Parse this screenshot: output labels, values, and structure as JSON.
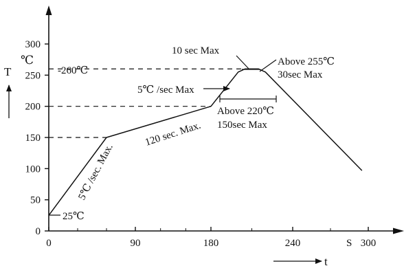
{
  "chart_data": {
    "type": "line",
    "title": "",
    "xlabel": "t",
    "ylabel": "T",
    "y_unit": "℃",
    "xlim": [
      0,
      300
    ],
    "ylim": [
      0,
      300
    ],
    "x_ticks": [
      0,
      90,
      180,
      240,
      300
    ],
    "x_tick_labels": [
      "0",
      "90",
      "180",
      "240",
      "300"
    ],
    "x_extra_label": "S",
    "y_ticks": [
      0,
      50,
      100,
      150,
      200,
      250,
      300
    ],
    "y_tick_labels": [
      "0",
      "50",
      "100",
      "150",
      "200",
      "250",
      "300"
    ],
    "series": [
      {
        "points": [
          [
            0,
            25
          ],
          [
            60,
            150
          ],
          [
            180,
            200
          ],
          [
            200,
            255
          ],
          [
            205,
            260
          ],
          [
            215,
            260
          ],
          [
            220,
            255
          ],
          [
            295,
            97
          ]
        ]
      }
    ],
    "reference_lines": [
      {
        "y": 260,
        "label": "-260℃"
      },
      {
        "y": 200,
        "label": ""
      },
      {
        "y": 150,
        "label": ""
      }
    ],
    "annotations": [
      {
        "text": "25℃"
      },
      {
        "text": "5℃ /sec. Max."
      },
      {
        "text": "120 sec. Max."
      },
      {
        "text": "5℃ /sec Max"
      },
      {
        "text": "10 sec  Max"
      },
      {
        "text": "Above 255℃"
      },
      {
        "text": "30sec Max"
      },
      {
        "text": "Above 220℃"
      },
      {
        "text": "150sec Max"
      }
    ]
  }
}
